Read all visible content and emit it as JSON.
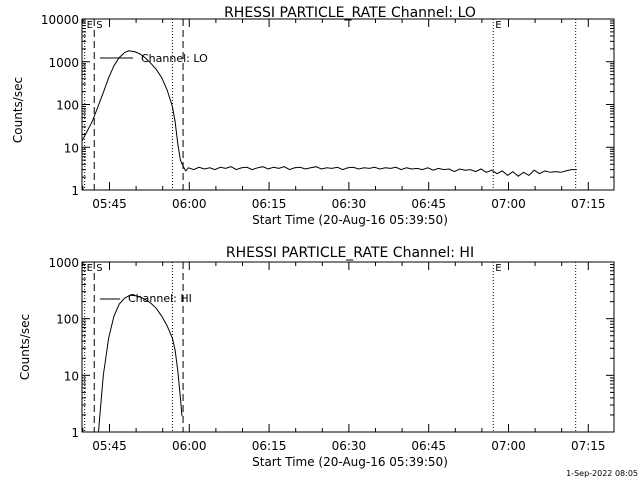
{
  "footer": {
    "timestamp": "1-Sep-2022 08:05"
  },
  "chart_data": [
    {
      "type": "line",
      "title": "RHESSI PARTICLE_RATE Channel: LO",
      "xlabel": "Start Time (20-Aug-16 05:39:50)",
      "ylabel": "Counts/sec",
      "yscale": "log",
      "ylim": [
        1,
        10000
      ],
      "xlim_minutes_after_start": [
        0,
        100
      ],
      "x_ticks": [
        "05:45",
        "06:00",
        "06:15",
        "06:30",
        "06:45",
        "07:00",
        "07:15"
      ],
      "y_ticks": [
        "1",
        "10",
        "100",
        "1000",
        "10000"
      ],
      "legend": {
        "label": "Channel: LO",
        "position": "top-left"
      },
      "markers": [
        {
          "label": "E",
          "minute": 0.5,
          "style": "dotted"
        },
        {
          "label": "S",
          "minute": 2.3,
          "style": "dashed"
        },
        {
          "label": "",
          "minute": 17.0,
          "style": "dotted"
        },
        {
          "label": "",
          "minute": 19.0,
          "style": "dashed"
        },
        {
          "label": "E",
          "minute": 77.3,
          "style": "dotted"
        },
        {
          "label": "",
          "minute": 92.8,
          "style": "dotted"
        }
      ],
      "series": [
        {
          "name": "Channel: LO",
          "points": [
            [
              0,
              14
            ],
            [
              1,
              24
            ],
            [
              2,
              42
            ],
            [
              3,
              90
            ],
            [
              4,
              190
            ],
            [
              5,
              420
            ],
            [
              6,
              800
            ],
            [
              7,
              1250
            ],
            [
              8,
              1650
            ],
            [
              8.8,
              1800
            ],
            [
              10,
              1700
            ],
            [
              11,
              1500
            ],
            [
              12,
              1200
            ],
            [
              13,
              900
            ],
            [
              14,
              650
            ],
            [
              15,
              420
            ],
            [
              16,
              220
            ],
            [
              17,
              90
            ],
            [
              17.5,
              40
            ],
            [
              18,
              12
            ],
            [
              18.5,
              5
            ],
            [
              19,
              3.6
            ],
            [
              19.5,
              2.8
            ],
            [
              20,
              3.3
            ],
            [
              21,
              3.0
            ],
            [
              22,
              3.4
            ],
            [
              23,
              3.1
            ],
            [
              24,
              3.3
            ],
            [
              25,
              3.0
            ],
            [
              26,
              3.4
            ],
            [
              27,
              3.2
            ],
            [
              28,
              3.5
            ],
            [
              29,
              3.0
            ],
            [
              30,
              3.3
            ],
            [
              31,
              3.4
            ],
            [
              32,
              3.0
            ],
            [
              33,
              3.3
            ],
            [
              34,
              3.5
            ],
            [
              35,
              3.1
            ],
            [
              36,
              3.4
            ],
            [
              37,
              3.2
            ],
            [
              38,
              3.5
            ],
            [
              39,
              3.0
            ],
            [
              40,
              3.3
            ],
            [
              41,
              3.4
            ],
            [
              42,
              3.1
            ],
            [
              43,
              3.3
            ],
            [
              44,
              3.5
            ],
            [
              45,
              3.1
            ],
            [
              46,
              3.3
            ],
            [
              47,
              3.2
            ],
            [
              48,
              3.4
            ],
            [
              49,
              3.0
            ],
            [
              50,
              3.3
            ],
            [
              51,
              3.4
            ],
            [
              52,
              3.1
            ],
            [
              53,
              3.3
            ],
            [
              54,
              3.2
            ],
            [
              55,
              3.4
            ],
            [
              56,
              3.1
            ],
            [
              57,
              3.3
            ],
            [
              58,
              3.2
            ],
            [
              59,
              3.4
            ],
            [
              60,
              3.0
            ],
            [
              61,
              3.3
            ],
            [
              62,
              3.1
            ],
            [
              63,
              3.2
            ],
            [
              64,
              3.0
            ],
            [
              65,
              3.3
            ],
            [
              66,
              2.9
            ],
            [
              67,
              3.2
            ],
            [
              68,
              3.0
            ],
            [
              69,
              3.1
            ],
            [
              70,
              2.7
            ],
            [
              71,
              3.1
            ],
            [
              72,
              2.9
            ],
            [
              73,
              3.0
            ],
            [
              74,
              2.7
            ],
            [
              75,
              3.1
            ],
            [
              76,
              2.6
            ],
            [
              77,
              2.9
            ],
            [
              78,
              2.4
            ],
            [
              79,
              2.8
            ],
            [
              80,
              2.2
            ],
            [
              81,
              2.7
            ],
            [
              82,
              2.1
            ],
            [
              83,
              2.6
            ],
            [
              84,
              2.2
            ],
            [
              85,
              2.9
            ],
            [
              86,
              2.4
            ],
            [
              87,
              2.8
            ],
            [
              88,
              2.6
            ],
            [
              89,
              2.7
            ],
            [
              90,
              2.6
            ],
            [
              91,
              2.8
            ],
            [
              92,
              3.0
            ],
            [
              93,
              3.0
            ]
          ]
        }
      ]
    },
    {
      "type": "line",
      "title": "RHESSI PARTICLE_RATE Channel: HI",
      "xlabel": "Start Time (20-Aug-16 05:39:50)",
      "ylabel": "Counts/sec",
      "yscale": "log",
      "ylim": [
        1,
        1000
      ],
      "xlim_minutes_after_start": [
        0,
        100
      ],
      "x_ticks": [
        "05:45",
        "06:00",
        "06:15",
        "06:30",
        "06:45",
        "07:00",
        "07:15"
      ],
      "y_ticks": [
        "1",
        "10",
        "100",
        "1000"
      ],
      "legend": {
        "label": "Channel: HI",
        "position": "top-left"
      },
      "markers": [
        {
          "label": "E",
          "minute": 0.5,
          "style": "dotted"
        },
        {
          "label": "S",
          "minute": 2.3,
          "style": "dashed"
        },
        {
          "label": "",
          "minute": 17.0,
          "style": "dotted"
        },
        {
          "label": "",
          "minute": 19.0,
          "style": "dashed"
        },
        {
          "label": "E",
          "minute": 77.3,
          "style": "dotted"
        },
        {
          "label": "",
          "minute": 92.8,
          "style": "dotted"
        }
      ],
      "series": [
        {
          "name": "Channel: HI",
          "points": [
            [
              3.1,
              1.0
            ],
            [
              3.4,
              2.2
            ],
            [
              4,
              10
            ],
            [
              5,
              45
            ],
            [
              6,
              110
            ],
            [
              7,
              180
            ],
            [
              8,
              230
            ],
            [
              9,
              260
            ],
            [
              10,
              255
            ],
            [
              11,
              240
            ],
            [
              12,
              215
            ],
            [
              13,
              185
            ],
            [
              14,
              150
            ],
            [
              15,
              110
            ],
            [
              16,
              75
            ],
            [
              17,
              45
            ],
            [
              17.5,
              28
            ],
            [
              18,
              12
            ],
            [
              18.5,
              4
            ],
            [
              18.8,
              1.9
            ]
          ]
        }
      ]
    }
  ]
}
